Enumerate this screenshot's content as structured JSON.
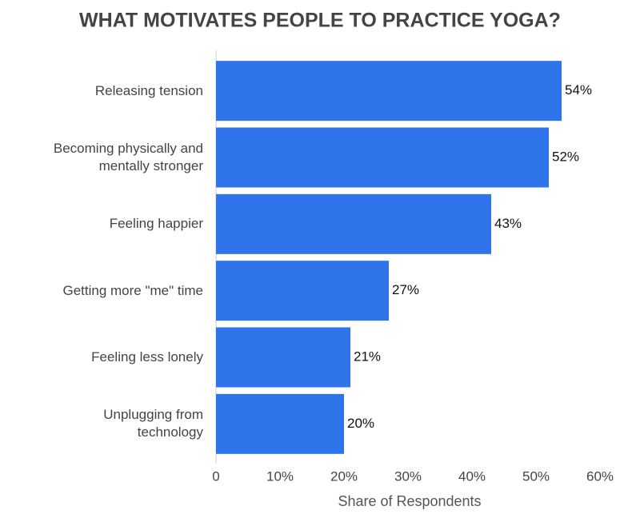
{
  "chart_data": {
    "type": "bar",
    "orientation": "horizontal",
    "title": "WHAT MOTIVATES PEOPLE TO PRACTICE YOGA?",
    "x_label": "Share of Respondents",
    "categories": [
      "Releasing tension",
      "Becoming physically and\nmentally stronger",
      "Feeling happier",
      "Getting more \"me\" time",
      "Feeling less lonely",
      "Unplugging from\ntechnology"
    ],
    "values": [
      54,
      52,
      43,
      27,
      21,
      20
    ],
    "value_labels": [
      "54%",
      "52%",
      "43%",
      "27%",
      "21%",
      "20%"
    ],
    "color": "#3074ec",
    "xlim": [
      0,
      60
    ],
    "xticks": [
      0,
      {
        "value": 10,
        "label": "10%"
      },
      {
        "value": 20,
        "label": "20%"
      },
      {
        "value": 30,
        "label": "30%"
      },
      {
        "value": 40,
        "label": "40%"
      },
      {
        "value": 50,
        "label": "50%"
      },
      {
        "value": 60,
        "label": "60%"
      }
    ],
    "grid": false
  }
}
